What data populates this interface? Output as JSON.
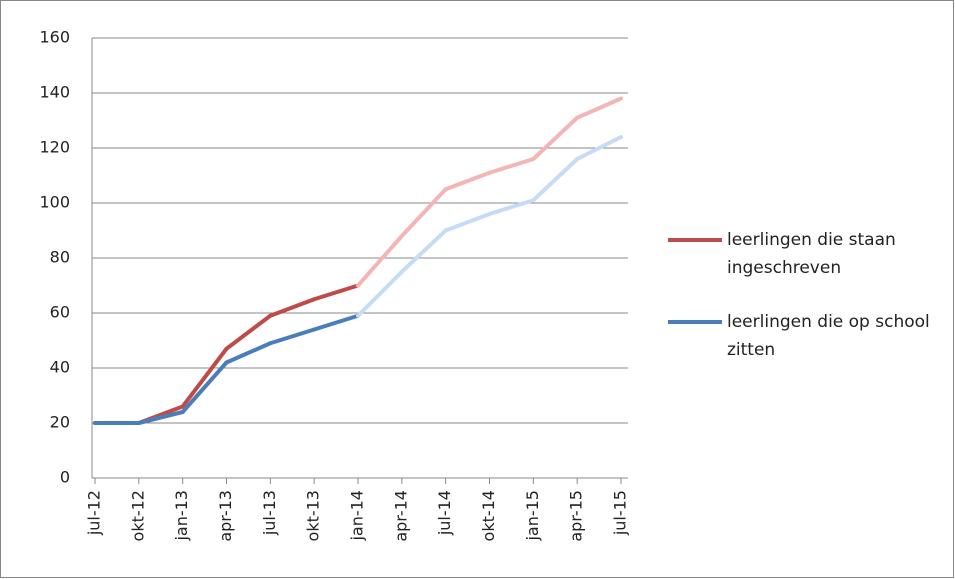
{
  "chart_data": {
    "type": "line",
    "categories": [
      "jul-12",
      "okt-12",
      "jan-13",
      "apr-13",
      "jul-13",
      "okt-13",
      "jan-14",
      "apr-14",
      "jul-14",
      "okt-14",
      "jan-15",
      "apr-15",
      "jul-15"
    ],
    "series": [
      {
        "name": "leerlingen die staan ingeschreven",
        "color": "#be4b48",
        "segment_colors": [
          "#be4b48",
          "#be4b48",
          "#be4b48",
          "#be4b48",
          "#be4b48",
          "#be4b48",
          "#f4b6b5",
          "#f4b6b5",
          "#f4b6b5",
          "#f4b6b5",
          "#f4b6b5",
          "#f4b6b5"
        ],
        "values": [
          20,
          20,
          26,
          47,
          59,
          65,
          70,
          88,
          105,
          111,
          116,
          131,
          138
        ]
      },
      {
        "name": "leerlingen die op school zitten",
        "color": "#4a7ebb",
        "segment_colors": [
          "#4a7ebb",
          "#4a7ebb",
          "#4a7ebb",
          "#4a7ebb",
          "#4a7ebb",
          "#4a7ebb",
          "#c6dcf5",
          "#c6dcf5",
          "#c6dcf5",
          "#c6dcf5",
          "#c6dcf5",
          "#c6dcf5"
        ],
        "values": [
          20,
          20,
          24,
          42,
          49,
          54,
          59,
          75,
          90,
          96,
          101,
          116,
          124
        ]
      }
    ],
    "ylim": [
      0,
      160
    ],
    "yticks": [
      0,
      20,
      40,
      60,
      80,
      100,
      120,
      140,
      160
    ],
    "grid": true,
    "legend": "right"
  }
}
